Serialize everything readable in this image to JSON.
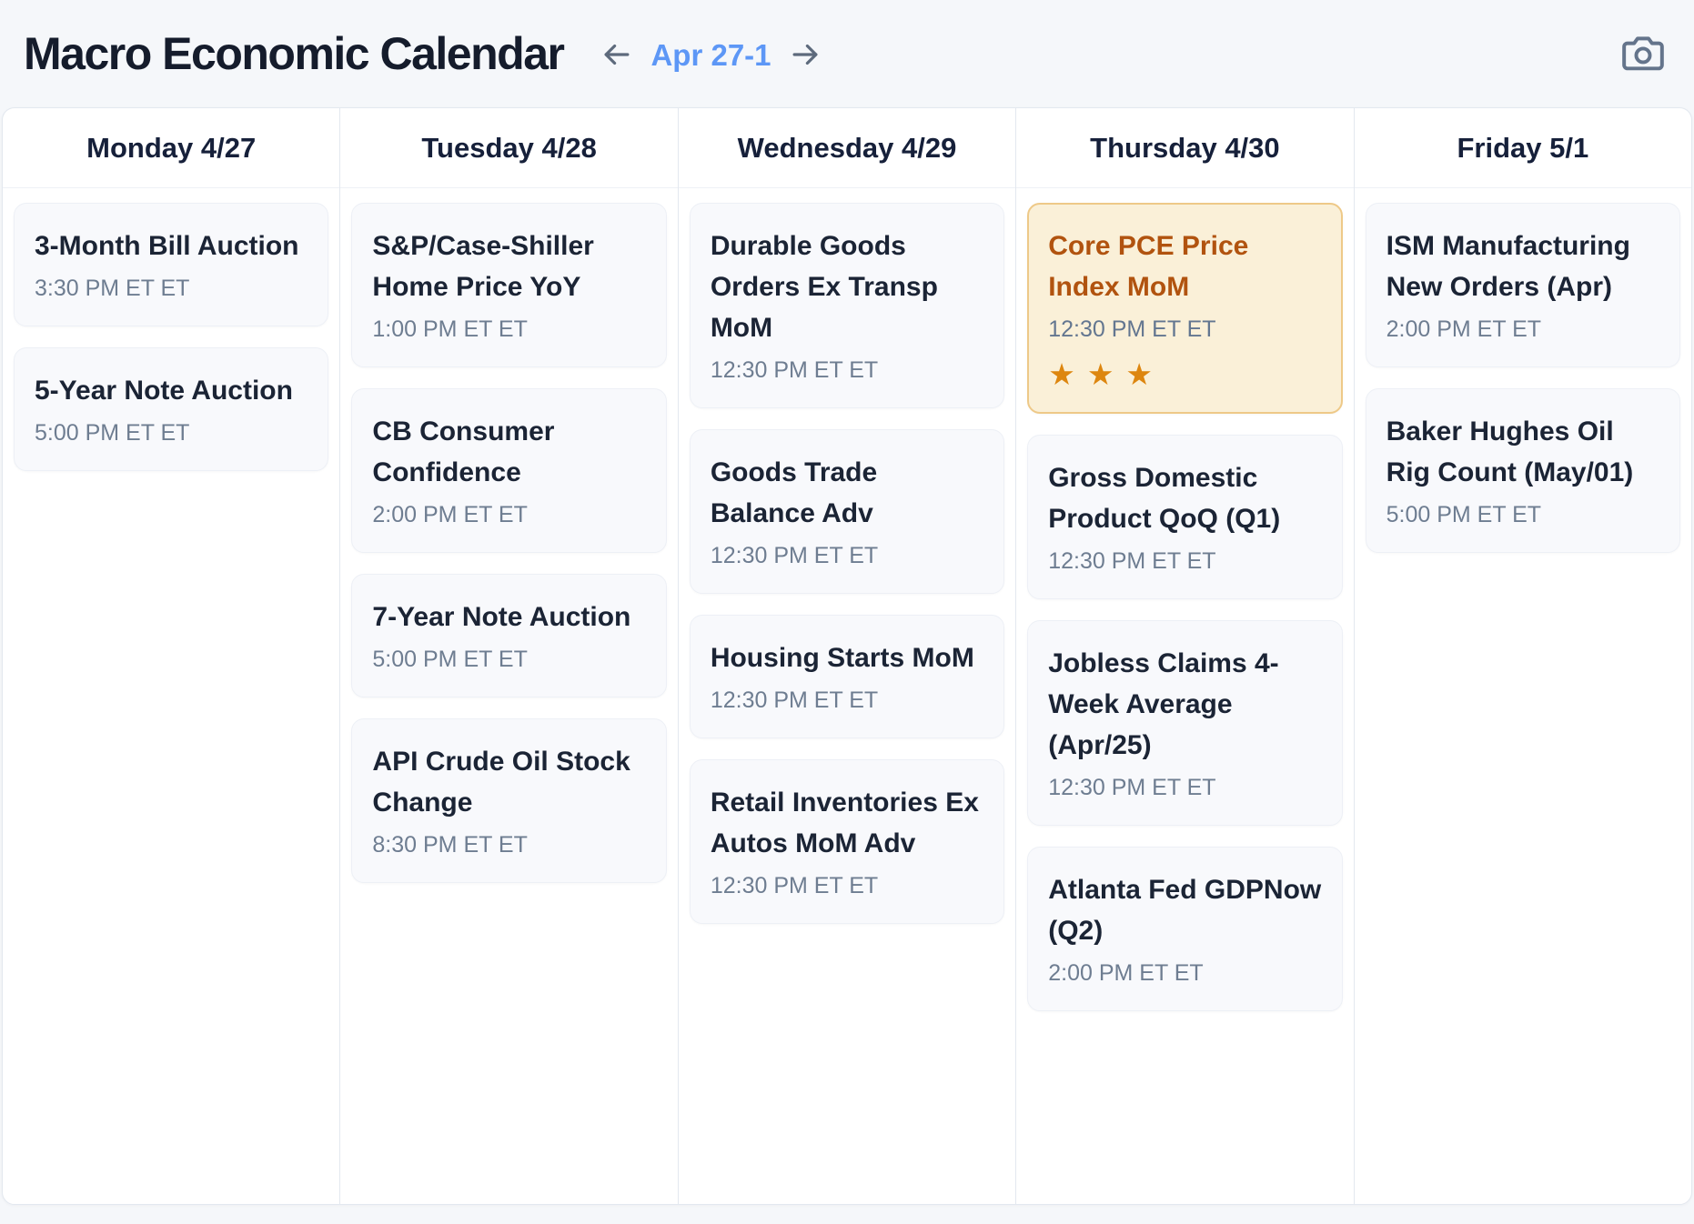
{
  "header": {
    "title": "Macro Economic Calendar",
    "date_range": "Apr 27-1"
  },
  "icons": {
    "arrow-left-icon": "←",
    "arrow-right-icon": "→",
    "camera-icon": "camera-outline",
    "importance-star-icon": "★"
  },
  "colors": {
    "page_bg": "#f5f7fa",
    "accent_blue": "#5d97f6",
    "card_bg": "#f8f9fc",
    "title_text": "#1b2435",
    "time_text": "#6e7d91",
    "highlight_bg": "#faf0d8",
    "highlight_border": "#eec988",
    "highlight_title": "#b1530f",
    "star_orange": "#dd860f"
  },
  "days": [
    {
      "label": "Monday 4/27",
      "events": [
        {
          "title": "3-Month Bill Auction",
          "time": "3:30 PM ET ET"
        },
        {
          "title": "5-Year Note Auction",
          "time": "5:00 PM ET ET"
        }
      ]
    },
    {
      "label": "Tuesday 4/28",
      "events": [
        {
          "title": "S&P/Case-Shiller Home Price YoY",
          "time": "1:00 PM ET ET"
        },
        {
          "title": "CB Consumer Confidence",
          "time": "2:00 PM ET ET"
        },
        {
          "title": "7-Year Note Auction",
          "time": "5:00 PM ET ET"
        },
        {
          "title": "API Crude Oil Stock Change",
          "time": "8:30 PM ET ET"
        }
      ]
    },
    {
      "label": "Wednesday 4/29",
      "events": [
        {
          "title": "Durable Goods Orders Ex Transp MoM",
          "time": "12:30 PM ET ET"
        },
        {
          "title": "Goods Trade Balance Adv",
          "time": "12:30 PM ET ET"
        },
        {
          "title": "Housing Starts MoM",
          "time": "12:30 PM ET ET"
        },
        {
          "title": "Retail Inventories Ex Autos MoM Adv",
          "time": "12:30 PM ET ET"
        }
      ]
    },
    {
      "label": "Thursday 4/30",
      "events": [
        {
          "title": "Core PCE Price Index MoM",
          "time": "12:30 PM ET ET",
          "highlighted": true,
          "stars": 3
        },
        {
          "title": "Gross Domestic Product QoQ (Q1)",
          "time": "12:30 PM ET ET"
        },
        {
          "title": "Jobless Claims 4-Week Average (Apr/25)",
          "time": "12:30 PM ET ET"
        },
        {
          "title": "Atlanta Fed GDPNow (Q2)",
          "time": "2:00 PM ET ET"
        }
      ]
    },
    {
      "label": "Friday 5/1",
      "events": [
        {
          "title": "ISM Manufacturing New Orders (Apr)",
          "time": "2:00 PM ET ET"
        },
        {
          "title": "Baker Hughes Oil Rig Count (May/01)",
          "time": "5:00 PM ET ET"
        }
      ]
    }
  ]
}
